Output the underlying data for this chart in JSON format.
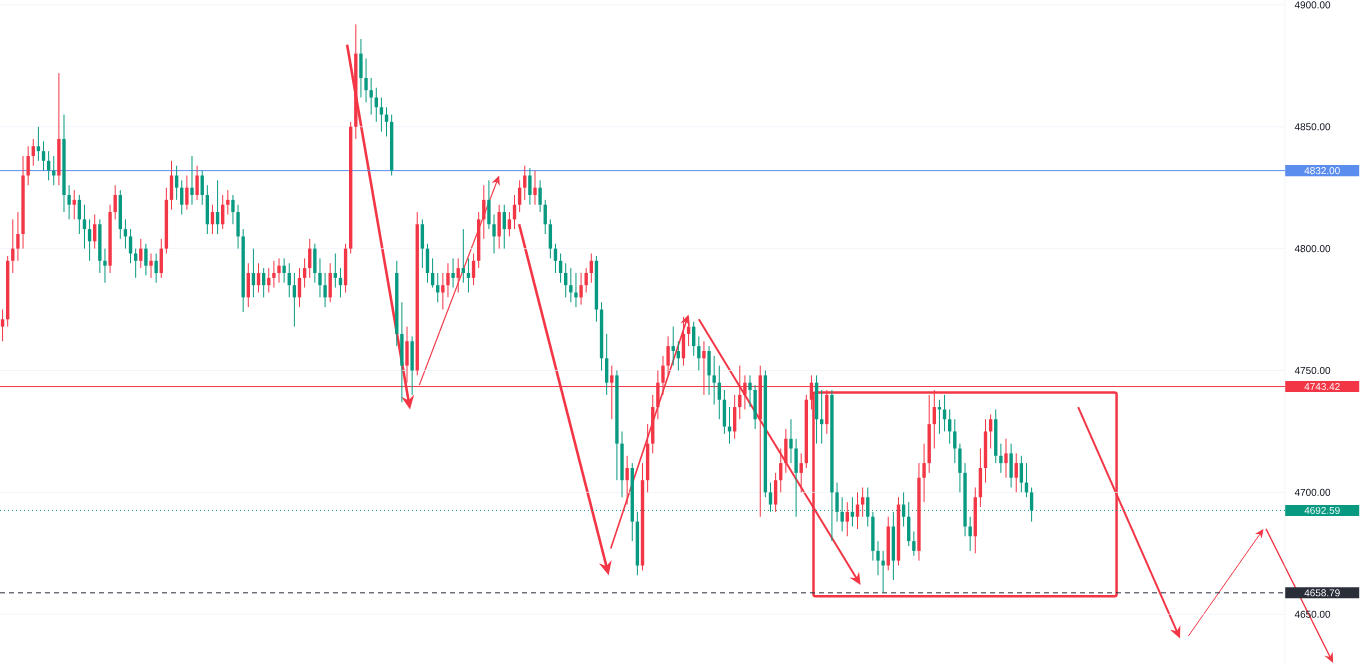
{
  "chart_data": {
    "type": "candlestick",
    "categories": [
      null,
      null,
      null,
      null,
      null,
      null,
      null,
      null,
      null,
      null,
      null,
      null,
      null,
      null,
      null,
      null,
      null,
      null,
      null,
      null,
      null,
      null,
      null,
      null,
      null,
      null,
      null,
      null,
      null,
      null,
      null,
      null,
      null,
      null,
      null,
      null,
      null,
      null,
      null,
      null,
      null,
      null,
      null,
      null,
      null,
      null,
      null,
      null,
      null,
      null,
      null,
      null,
      null,
      null,
      null,
      null,
      null,
      null,
      null,
      null,
      null,
      null,
      null,
      null,
      null,
      null,
      null,
      null,
      null,
      null,
      null,
      null,
      null,
      null,
      null,
      null,
      null,
      null,
      null,
      null,
      null,
      null,
      null,
      null,
      null,
      null,
      null,
      null,
      null,
      null,
      null,
      null,
      null,
      null,
      null,
      null,
      null,
      null,
      null,
      null,
      null,
      null,
      null,
      null,
      null,
      null,
      null,
      null,
      null,
      null,
      null,
      null,
      null,
      null,
      null,
      null,
      null,
      null,
      null,
      null,
      null,
      null,
      null,
      null,
      null,
      null,
      null,
      null,
      null,
      null,
      null,
      null,
      null,
      null,
      null,
      null,
      null,
      null,
      null,
      null,
      null,
      null,
      null,
      null,
      null,
      null,
      null,
      null,
      null,
      null,
      null,
      null,
      null,
      null,
      null,
      null,
      null,
      null,
      null,
      null,
      null,
      null,
      null,
      null,
      null,
      null,
      null,
      null,
      null,
      null,
      null,
      null,
      null,
      null,
      null,
      null,
      null,
      null,
      null,
      null,
      null,
      null,
      null,
      null,
      null,
      null,
      null,
      null,
      null,
      null,
      null,
      null,
      null,
      null,
      null,
      null,
      null,
      null,
      null,
      null,
      null,
      null,
      null,
      null,
      null,
      null,
      null,
      null,
      null,
      null,
      null,
      null,
      null,
      null,
      null,
      null,
      null,
      null,
      null,
      null,
      null,
      null,
      null,
      null,
      null,
      null,
      null,
      null,
      null,
      null,
      null,
      null,
      null,
      null,
      null,
      null,
      null,
      null,
      null,
      null,
      null,
      null,
      null,
      null,
      null,
      null,
      null,
      null,
      null,
      null,
      null
    ],
    "ohlc": [
      [
        4768,
        4775,
        4762,
        4771
      ],
      [
        4771,
        4797,
        4768,
        4795
      ],
      [
        4795,
        4812,
        4790,
        4800
      ],
      [
        4800,
        4815,
        4795,
        4806
      ],
      [
        4806,
        4838,
        4800,
        4830
      ],
      [
        4830,
        4842,
        4826,
        4838
      ],
      [
        4838,
        4845,
        4834,
        4842
      ],
      [
        4842,
        4850,
        4836,
        4840
      ],
      [
        4840,
        4844,
        4832,
        4836
      ],
      [
        4836,
        4840,
        4828,
        4832
      ],
      [
        4832,
        4838,
        4826,
        4830
      ],
      [
        4830,
        4872,
        4826,
        4845
      ],
      [
        4845,
        4855,
        4815,
        4822
      ],
      [
        4822,
        4826,
        4812,
        4818
      ],
      [
        4818,
        4824,
        4812,
        4820
      ],
      [
        4820,
        4822,
        4806,
        4812
      ],
      [
        4812,
        4818,
        4800,
        4808
      ],
      [
        4808,
        4812,
        4795,
        4803
      ],
      [
        4803,
        4814,
        4800,
        4810
      ],
      [
        4810,
        4812,
        4790,
        4795
      ],
      [
        4795,
        4800,
        4786,
        4793
      ],
      [
        4793,
        4818,
        4790,
        4815
      ],
      [
        4815,
        4826,
        4812,
        4822
      ],
      [
        4822,
        4824,
        4804,
        4808
      ],
      [
        4808,
        4812,
        4800,
        4805
      ],
      [
        4805,
        4808,
        4794,
        4798
      ],
      [
        4798,
        4800,
        4788,
        4795
      ],
      [
        4795,
        4804,
        4792,
        4800
      ],
      [
        4800,
        4802,
        4789,
        4793
      ],
      [
        4793,
        4798,
        4788,
        4795
      ],
      [
        4795,
        4798,
        4786,
        4790
      ],
      [
        4790,
        4804,
        4788,
        4800
      ],
      [
        4800,
        4825,
        4798,
        4820
      ],
      [
        4820,
        4836,
        4816,
        4830
      ],
      [
        4830,
        4834,
        4820,
        4825
      ],
      [
        4825,
        4828,
        4814,
        4818
      ],
      [
        4818,
        4830,
        4816,
        4825
      ],
      [
        4825,
        4838,
        4818,
        4822
      ],
      [
        4822,
        4834,
        4820,
        4830
      ],
      [
        4830,
        4832,
        4818,
        4822
      ],
      [
        4822,
        4826,
        4806,
        4810
      ],
      [
        4810,
        4818,
        4806,
        4815
      ],
      [
        4815,
        4828,
        4806,
        4810
      ],
      [
        4810,
        4822,
        4808,
        4818
      ],
      [
        4818,
        4824,
        4814,
        4820
      ],
      [
        4820,
        4822,
        4810,
        4815
      ],
      [
        4815,
        4818,
        4800,
        4805
      ],
      [
        4805,
        4808,
        4774,
        4780
      ],
      [
        4780,
        4794,
        4776,
        4790
      ],
      [
        4790,
        4800,
        4780,
        4785
      ],
      [
        4785,
        4794,
        4782,
        4790
      ],
      [
        4790,
        4792,
        4780,
        4785
      ],
      [
        4785,
        4792,
        4782,
        4788
      ],
      [
        4788,
        4795,
        4784,
        4790
      ],
      [
        4790,
        4796,
        4786,
        4793
      ],
      [
        4793,
        4796,
        4786,
        4790
      ],
      [
        4790,
        4794,
        4780,
        4785
      ],
      [
        4785,
        4790,
        4768,
        4780
      ],
      [
        4780,
        4792,
        4776,
        4788
      ],
      [
        4788,
        4796,
        4784,
        4792
      ],
      [
        4792,
        4804,
        4788,
        4800
      ],
      [
        4800,
        4802,
        4786,
        4790
      ],
      [
        4790,
        4796,
        4780,
        4785
      ],
      [
        4785,
        4790,
        4776,
        4780
      ],
      [
        4780,
        4794,
        4778,
        4790
      ],
      [
        4790,
        4798,
        4784,
        4788
      ],
      [
        4788,
        4792,
        4780,
        4785
      ],
      [
        4785,
        4802,
        4782,
        4800
      ],
      [
        4800,
        4852,
        4798,
        4850
      ],
      [
        4850,
        4892,
        4845,
        4880
      ],
      [
        4880,
        4886,
        4862,
        4870
      ],
      [
        4870,
        4878,
        4860,
        4865
      ],
      [
        4865,
        4870,
        4855,
        4862
      ],
      [
        4862,
        4866,
        4852,
        4858
      ],
      [
        4858,
        4862,
        4848,
        4855
      ],
      [
        4855,
        4858,
        4846,
        4852
      ],
      [
        4852,
        4855,
        4830,
        4832
      ],
      [
        4790,
        4795,
        4760,
        4765
      ],
      [
        4765,
        4778,
        4737,
        4752
      ],
      [
        4752,
        4768,
        4745,
        4762
      ],
      [
        4762,
        4764,
        4740,
        4750
      ],
      [
        4750,
        4815,
        4748,
        4810
      ],
      [
        4810,
        4812,
        4792,
        4800
      ],
      [
        4800,
        4802,
        4786,
        4790
      ],
      [
        4790,
        4796,
        4784,
        4785
      ],
      [
        4785,
        4790,
        4778,
        4782
      ],
      [
        4782,
        4790,
        4775,
        4785
      ],
      [
        4785,
        4794,
        4780,
        4790
      ],
      [
        4790,
        4796,
        4784,
        4788
      ],
      [
        4788,
        4796,
        4782,
        4792
      ],
      [
        4792,
        4808,
        4786,
        4790
      ],
      [
        4790,
        4796,
        4782,
        4788
      ],
      [
        4788,
        4798,
        4785,
        4795
      ],
      [
        4795,
        4815,
        4792,
        4812
      ],
      [
        4812,
        4826,
        4804,
        4820
      ],
      [
        4820,
        4828,
        4808,
        4810
      ],
      [
        4810,
        4814,
        4798,
        4805
      ],
      [
        4805,
        4818,
        4800,
        4815
      ],
      [
        4815,
        4818,
        4800,
        4808
      ],
      [
        4808,
        4815,
        4805,
        4812
      ],
      [
        4812,
        4822,
        4808,
        4818
      ],
      [
        4818,
        4828,
        4815,
        4825
      ],
      [
        4825,
        4834,
        4820,
        4830
      ],
      [
        4830,
        4833,
        4818,
        4822
      ],
      [
        4822,
        4832,
        4818,
        4825
      ],
      [
        4825,
        4828,
        4815,
        4818
      ],
      [
        4818,
        4820,
        4806,
        4810
      ],
      [
        4810,
        4812,
        4796,
        4800
      ],
      [
        4800,
        4802,
        4790,
        4795
      ],
      [
        4795,
        4798,
        4786,
        4790
      ],
      [
        4790,
        4794,
        4780,
        4785
      ],
      [
        4785,
        4792,
        4778,
        4782
      ],
      [
        4782,
        4790,
        4776,
        4780
      ],
      [
        4780,
        4790,
        4777,
        4785
      ],
      [
        4785,
        4792,
        4782,
        4790
      ],
      [
        4790,
        4798,
        4786,
        4795
      ],
      [
        4795,
        4797,
        4770,
        4775
      ],
      [
        4775,
        4778,
        4750,
        4755
      ],
      [
        4755,
        4765,
        4740,
        4745
      ],
      [
        4745,
        4752,
        4730,
        4748
      ],
      [
        4748,
        4750,
        4705,
        4720
      ],
      [
        4720,
        4725,
        4698,
        4705
      ],
      [
        4705,
        4715,
        4695,
        4710
      ],
      [
        4710,
        4712,
        4680,
        4688
      ],
      [
        4688,
        4692,
        4666,
        4670
      ],
      [
        4670,
        4712,
        4668,
        4705
      ],
      [
        4705,
        4728,
        4700,
        4720
      ],
      [
        4720,
        4740,
        4716,
        4735
      ],
      [
        4735,
        4750,
        4730,
        4745
      ],
      [
        4745,
        4756,
        4740,
        4752
      ],
      [
        4752,
        4764,
        4748,
        4760
      ],
      [
        4760,
        4768,
        4752,
        4758
      ],
      [
        4758,
        4762,
        4750,
        4755
      ],
      [
        4755,
        4772,
        4752,
        4765
      ],
      [
        4765,
        4772,
        4760,
        4768
      ],
      [
        4768,
        4770,
        4756,
        4760
      ],
      [
        4760,
        4764,
        4750,
        4755
      ],
      [
        4755,
        4762,
        4740,
        4758
      ],
      [
        4758,
        4760,
        4740,
        4748
      ],
      [
        4748,
        4756,
        4736,
        4745
      ],
      [
        4745,
        4752,
        4730,
        4738
      ],
      [
        4738,
        4742,
        4724,
        4727
      ],
      [
        4727,
        4735,
        4720,
        4725
      ],
      [
        4725,
        4740,
        4722,
        4735
      ],
      [
        4735,
        4752,
        4730,
        4740
      ],
      [
        4740,
        4748,
        4734,
        4745
      ],
      [
        4745,
        4748,
        4735,
        4742
      ],
      [
        4742,
        4744,
        4726,
        4730
      ],
      [
        4730,
        4752,
        4690,
        4748
      ],
      [
        4748,
        4750,
        4698,
        4700
      ],
      [
        4700,
        4704,
        4692,
        4695
      ],
      [
        4695,
        4708,
        4692,
        4705
      ],
      [
        4705,
        4718,
        4700,
        4712
      ],
      [
        4712,
        4726,
        4708,
        4722
      ],
      [
        4722,
        4730,
        4712,
        4718
      ],
      [
        4718,
        4722,
        4690,
        4708
      ],
      [
        4708,
        4716,
        4700,
        4712
      ],
      [
        4712,
        4740,
        4710,
        4738
      ],
      [
        4738,
        4748,
        4734,
        4745
      ],
      [
        4745,
        4748,
        4720,
        4730
      ],
      [
        4730,
        4742,
        4720,
        4728
      ],
      [
        4728,
        4742,
        4724,
        4740
      ],
      [
        4740,
        4742,
        4680,
        4700
      ],
      [
        4700,
        4704,
        4688,
        4692
      ],
      [
        4692,
        4698,
        4684,
        4688
      ],
      [
        4688,
        4696,
        4682,
        4692
      ],
      [
        4692,
        4698,
        4686,
        4690
      ],
      [
        4690,
        4700,
        4685,
        4695
      ],
      [
        4695,
        4702,
        4690,
        4698
      ],
      [
        4698,
        4702,
        4686,
        4690
      ],
      [
        4690,
        4692,
        4672,
        4676
      ],
      [
        4676,
        4680,
        4666,
        4672
      ],
      [
        4672,
        4676,
        4659,
        4670
      ],
      [
        4670,
        4690,
        4668,
        4686
      ],
      [
        4686,
        4692,
        4664,
        4672
      ],
      [
        4672,
        4698,
        4670,
        4695
      ],
      [
        4695,
        4700,
        4686,
        4690
      ],
      [
        4690,
        4696,
        4678,
        4680
      ],
      [
        4680,
        4684,
        4674,
        4676
      ],
      [
        4676,
        4712,
        4672,
        4706
      ],
      [
        4706,
        4720,
        4696,
        4712
      ],
      [
        4712,
        4740,
        4708,
        4728
      ],
      [
        4728,
        4742,
        4718,
        4735
      ],
      [
        4735,
        4738,
        4724,
        4734
      ],
      [
        4734,
        4740,
        4725,
        4730
      ],
      [
        4730,
        4734,
        4720,
        4725
      ],
      [
        4725,
        4730,
        4712,
        4718
      ],
      [
        4718,
        4720,
        4700,
        4708
      ],
      [
        4708,
        4712,
        4682,
        4686
      ],
      [
        4686,
        4690,
        4676,
        4682
      ],
      [
        4682,
        4702,
        4675,
        4698
      ],
      [
        4698,
        4718,
        4694,
        4710
      ],
      [
        4710,
        4730,
        4704,
        4725
      ],
      [
        4725,
        4732,
        4718,
        4730
      ],
      [
        4730,
        4734,
        4712,
        4715
      ],
      [
        4715,
        4720,
        4708,
        4712
      ],
      [
        4712,
        4722,
        4706,
        4716
      ],
      [
        4716,
        4720,
        4702,
        4706
      ],
      [
        4706,
        4716,
        4700,
        4712
      ],
      [
        4712,
        4715,
        4700,
        4704
      ],
      [
        4704,
        4712,
        4698,
        4700
      ],
      [
        4700,
        4702,
        4688,
        4692.59
      ],
      null,
      null,
      null,
      null,
      null,
      null,
      null,
      null,
      null,
      null,
      null,
      null,
      null,
      null,
      null,
      null,
      null,
      null,
      null,
      null,
      null,
      null,
      null,
      null,
      null,
      null,
      null,
      null,
      null,
      null,
      null,
      null,
      null,
      null,
      null,
      null,
      null,
      null,
      null,
      null,
      null,
      null,
      null,
      null,
      null,
      null,
      null,
      null,
      null
    ],
    "colors": [
      "#f23645",
      "#f23645",
      "#f23645",
      "#f23645",
      "#f23645",
      "#f23645",
      "#f23645",
      "#089981",
      "#089981",
      "#089981",
      "#089981",
      "#f23645",
      "#089981",
      "#089981",
      "#f23645",
      "#089981",
      "#089981",
      "#089981",
      "#f23645",
      "#089981",
      "#089981",
      "#f23645",
      "#f23645",
      "#089981",
      "#089981",
      "#089981",
      "#089981",
      "#f23645",
      "#089981",
      "#f23645",
      "#089981",
      "#f23645",
      "#f23645",
      "#f23645",
      "#089981",
      "#089981",
      "#f23645",
      "#089981",
      "#f23645",
      "#089981",
      "#089981",
      "#f23645",
      "#089981",
      "#f23645",
      "#f23645",
      "#089981",
      "#089981",
      "#089981",
      "#f23645",
      "#089981",
      "#f23645",
      "#089981",
      "#f23645",
      "#f23645",
      "#f23645",
      "#089981",
      "#089981",
      "#089981",
      "#f23645",
      "#f23645",
      "#f23645",
      "#089981",
      "#089981",
      "#089981",
      "#f23645",
      "#089981",
      "#089981",
      "#f23645",
      "#f23645",
      "#f23645",
      "#089981",
      "#089981",
      "#089981",
      "#089981",
      "#089981",
      "#089981",
      "#089981",
      "#089981",
      "#089981",
      "#f23645",
      "#089981",
      "#f23645",
      "#089981",
      "#089981",
      "#089981",
      "#089981",
      "#f23645",
      "#f23645",
      "#089981",
      "#f23645",
      "#089981",
      "#089981",
      "#f23645",
      "#f23645",
      "#f23645",
      "#089981",
      "#089981",
      "#f23645",
      "#089981",
      "#f23645",
      "#f23645",
      "#f23645",
      "#f23645",
      "#089981",
      "#f23645",
      "#089981",
      "#089981",
      "#089981",
      "#089981",
      "#089981",
      "#089981",
      "#089981",
      "#089981",
      "#f23645",
      "#f23645",
      "#f23645",
      "#089981",
      "#089981",
      "#089981",
      "#f23645",
      "#089981",
      "#089981",
      "#f23645",
      "#089981",
      "#089981",
      "#f23645",
      "#f23645",
      "#f23645",
      "#f23645",
      "#f23645",
      "#f23645",
      "#089981",
      "#089981",
      "#f23645",
      "#f23645",
      "#089981",
      "#089981",
      "#f23645",
      "#089981",
      "#089981",
      "#089981",
      "#089981",
      "#089981",
      "#f23645",
      "#f23645",
      "#f23645",
      "#089981",
      "#089981",
      "#f23645",
      "#089981",
      "#089981",
      "#f23645",
      "#f23645",
      "#f23645",
      "#089981",
      "#089981",
      "#f23645",
      "#f23645",
      "#f23645",
      "#089981",
      "#089981",
      "#f23645",
      "#089981",
      "#089981",
      "#089981",
      "#f23645",
      "#089981",
      "#f23645",
      "#f23645",
      "#089981",
      "#089981",
      "#089981",
      "#089981",
      "#f23645",
      "#089981",
      "#f23645",
      "#089981",
      "#089981",
      "#089981",
      "#f23645",
      "#f23645",
      "#f23645",
      "#f23645",
      "#089981",
      "#089981",
      "#089981",
      "#089981",
      "#089981",
      "#089981",
      "#089981",
      "#f23645",
      "#f23645",
      "#f23645",
      "#f23645",
      "#089981",
      "#089981",
      "#f23645",
      "#089981",
      "#f23645",
      "#089981",
      "#089981",
      "#089981",
      null,
      null,
      null,
      null,
      null,
      null,
      null,
      null,
      null,
      null,
      null,
      null,
      null,
      null,
      null,
      null,
      null,
      null,
      null,
      null,
      null,
      null,
      null,
      null,
      null,
      null,
      null,
      null,
      null,
      null,
      null,
      null,
      null,
      null,
      null,
      null,
      null,
      null,
      null,
      null,
      null,
      null,
      null,
      null,
      null,
      null,
      null,
      null,
      null
    ],
    "ylim": [
      4630,
      4902
    ],
    "yticks": [
      {
        "value": 4650,
        "label": "4650.00"
      },
      {
        "value": 4700,
        "label": "4700.00"
      },
      {
        "value": 4750,
        "label": "4750.00"
      },
      {
        "value": 4800,
        "label": "4800.00"
      },
      {
        "value": 4850,
        "label": "4850.00"
      },
      {
        "value": 4900,
        "label": "4900.00"
      }
    ],
    "grid": "y",
    "tick_labels": "y",
    "ref_lines": [
      {
        "axis": "y",
        "value": 4832,
        "label": "4832.00",
        "color": "#5b8def",
        "line_style": "solid"
      },
      {
        "axis": "y",
        "value": 4743.42,
        "label": "4743.42",
        "color": "#f23645",
        "line_style": "solid"
      },
      {
        "axis": "y",
        "value": 4692.59,
        "label": "4692.59",
        "color": "#089981",
        "line_style": "dotted"
      },
      {
        "axis": "y",
        "value": 4658.79,
        "label": "4658.79",
        "color": "#2a2e39",
        "line_style": "dashed"
      }
    ]
  }
}
